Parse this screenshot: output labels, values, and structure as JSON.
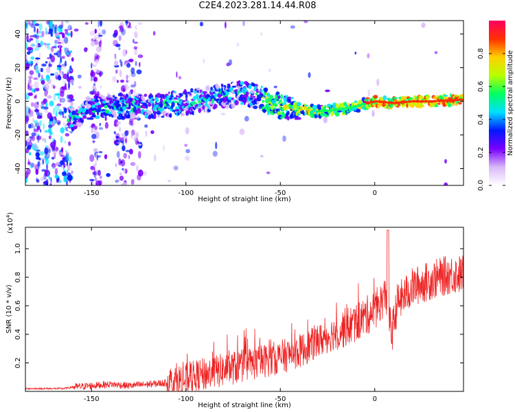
{
  "title": "C2E4.2023.281.14.44.R08",
  "chart_data": [
    {
      "type": "heatmap",
      "name": "spectrogram",
      "xlabel": "Height of straight line (km)",
      "ylabel": "Frequency (Hz)",
      "xlim": [
        -185,
        47
      ],
      "ylim": [
        -50,
        48
      ],
      "x_ticks": [
        -150,
        -100,
        -50,
        0
      ],
      "y_ticks": [
        -40,
        -20,
        0,
        20,
        40
      ],
      "colorbar": {
        "label": "Normalized spectral amplitude",
        "range": [
          0,
          1
        ],
        "ticks": [
          "0.0",
          "0.2",
          "0.4",
          "0.6",
          "0.8"
        ],
        "colors": [
          "#ffffff",
          "#d8b8f8",
          "#7a00ff",
          "#0018ff",
          "#00e0ff",
          "#00ff60",
          "#b8ff00",
          "#ffd000",
          "#ff3000",
          "#ff0060"
        ]
      },
      "ridge": {
        "x": [
          -160,
          -150,
          -140,
          -130,
          -120,
          -110,
          -100,
          -90,
          -80,
          -70,
          -60,
          -50,
          -40,
          -30,
          -20,
          -10,
          0,
          10,
          20,
          30,
          45
        ],
        "y": [
          -10,
          -4,
          -3,
          -3,
          -3,
          -2,
          -1,
          1,
          3,
          5,
          2,
          -3,
          -4,
          -6,
          -5,
          -3,
          0,
          -1,
          0,
          0,
          1
        ]
      }
    },
    {
      "type": "line",
      "name": "snr",
      "xlabel": "Height of straight line (km)",
      "ylabel": "SNR (10 * v/v)",
      "yscale_label": "(x10",
      "yscale_exp": "4",
      "xlim": [
        -185,
        47
      ],
      "ylim": [
        0,
        1.15
      ],
      "x_ticks": [
        -150,
        -100,
        -50,
        0
      ],
      "y_ticks": [
        0.2,
        0.4,
        0.6,
        0.8,
        1.0
      ],
      "color": "#ee2222",
      "envelope": {
        "x": [
          -185,
          -165,
          -160,
          -150,
          -140,
          -130,
          -120,
          -110,
          -100,
          -90,
          -80,
          -70,
          -60,
          -50,
          -40,
          -30,
          -20,
          -10,
          0,
          3,
          6,
          7,
          9,
          12,
          20,
          30,
          40,
          47
        ],
        "y": [
          0.02,
          0.02,
          0.03,
          0.04,
          0.05,
          0.04,
          0.05,
          0.06,
          0.08,
          0.12,
          0.15,
          0.18,
          0.21,
          0.24,
          0.28,
          0.35,
          0.42,
          0.48,
          0.57,
          0.62,
          0.68,
          0.55,
          0.4,
          0.62,
          0.73,
          0.78,
          0.82,
          0.82
        ]
      },
      "peak": {
        "x": 7,
        "y": 1.13
      }
    }
  ]
}
